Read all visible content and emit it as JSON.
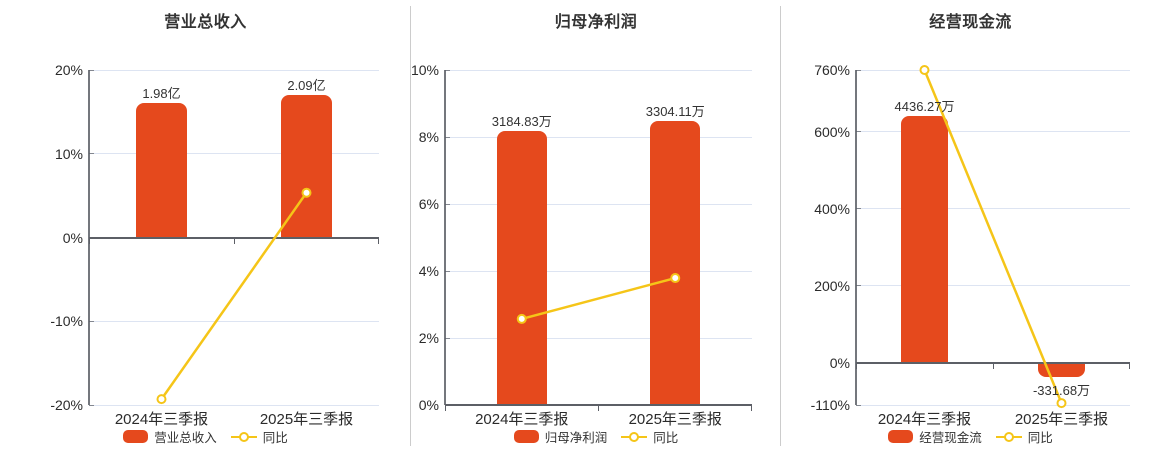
{
  "colors": {
    "bar": "#e5491d",
    "line": "#f5c518",
    "grid": "#dde4f2",
    "axis_line": "#5c5f66",
    "text": "#333333",
    "tick_text": "#2b2b2b",
    "divider": "#cccccc",
    "marker_fill": "#ffffff",
    "background": "#ffffff"
  },
  "chart_data": [
    {
      "type": "bar+line",
      "title": "营业总收入",
      "categories": [
        "2024年三季报",
        "2025年三季报"
      ],
      "legend": {
        "bar_label": "营业总收入",
        "line_label": "同比"
      },
      "y_axis": {
        "min": -20,
        "max": 20,
        "unit": "%",
        "grid": true,
        "ticks": [
          {
            "value": 20,
            "label": "20%"
          },
          {
            "value": 10,
            "label": "10%"
          },
          {
            "value": 0,
            "label": "0%"
          },
          {
            "value": -10,
            "label": "-10%"
          },
          {
            "value": -20,
            "label": "-20%"
          }
        ]
      },
      "bar_series": {
        "name": "营业总收入",
        "labels": [
          "1.98亿",
          "2.09亿"
        ],
        "plotted_tops_in_axis_units": [
          16.1,
          17.05
        ]
      },
      "line_series": {
        "name": "同比",
        "values_pct": [
          -19.3,
          5.35
        ]
      }
    },
    {
      "type": "bar+line",
      "title": "归母净利润",
      "categories": [
        "2024年三季报",
        "2025年三季报"
      ],
      "legend": {
        "bar_label": "归母净利润",
        "line_label": "同比"
      },
      "y_axis": {
        "min": 0,
        "max": 10,
        "unit": "%",
        "grid": true,
        "ticks": [
          {
            "value": 10,
            "label": "10%"
          },
          {
            "value": 8,
            "label": "8%"
          },
          {
            "value": 6,
            "label": "6%"
          },
          {
            "value": 4,
            "label": "4%"
          },
          {
            "value": 2,
            "label": "2%"
          },
          {
            "value": 0,
            "label": "0%"
          }
        ]
      },
      "bar_series": {
        "name": "归母净利润",
        "labels": [
          "3184.83万",
          "3304.11万"
        ],
        "plotted_tops_in_axis_units": [
          8.18,
          8.48
        ]
      },
      "line_series": {
        "name": "同比",
        "values_pct": [
          2.57,
          3.79
        ]
      }
    },
    {
      "type": "bar+line",
      "title": "经营现金流",
      "categories": [
        "2024年三季报",
        "2025年三季报"
      ],
      "legend": {
        "bar_label": "经营现金流",
        "line_label": "同比"
      },
      "y_axis": {
        "min": -110,
        "max": 760,
        "unit": "%",
        "grid": true,
        "ticks": [
          {
            "value": 760,
            "label": "760%"
          },
          {
            "value": 600,
            "label": "600%"
          },
          {
            "value": 400,
            "label": "400%"
          },
          {
            "value": 200,
            "label": "200%"
          },
          {
            "value": 0,
            "label": "0%"
          },
          {
            "value": -110,
            "label": "-110%"
          }
        ]
      },
      "bar_series": {
        "name": "经营现金流",
        "labels": [
          "4436.27万",
          "-331.68万"
        ],
        "plotted_tops_in_axis_units": [
          641,
          -37
        ]
      },
      "line_series": {
        "name": "同比",
        "values_pct": [
          760,
          -105
        ]
      }
    }
  ]
}
